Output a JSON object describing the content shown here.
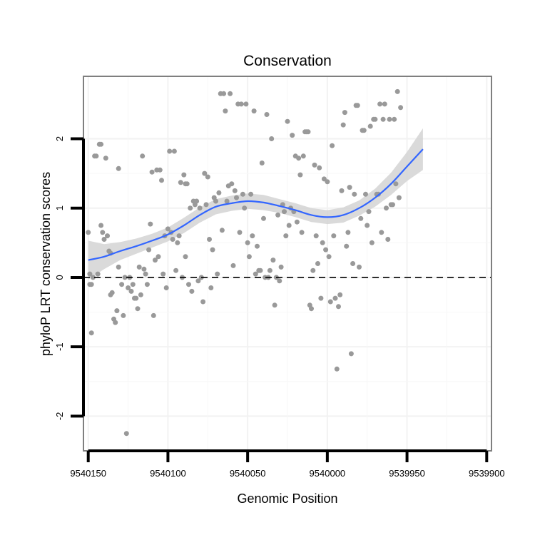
{
  "chart_data": {
    "type": "scatter",
    "title": "Conservation",
    "xlabel": "Genomic Position",
    "ylabel": "phyloP LRT conservation scores",
    "x_reversed": true,
    "xlim": [
      9540153,
      9539897
    ],
    "ylim": [
      -2.5,
      2.9
    ],
    "x_ticks": [
      9540150,
      9540100,
      9540050,
      9540000,
      9539950,
      9539900
    ],
    "x_tick_labels": [
      "9540150",
      "9540100",
      "9540050",
      "9540000",
      "9539950",
      "9539900"
    ],
    "y_ticks": [
      -2,
      -1,
      0,
      1,
      2
    ],
    "y_tick_labels": [
      "-2",
      "-1",
      "0",
      "1",
      "2"
    ],
    "grid": true,
    "reference_line": {
      "y": 0,
      "style": "dashed"
    },
    "colors": {
      "points": "#999999",
      "smooth": "#3366ff",
      "band": "#d3d3d3",
      "panel_border": "#7f7f7f",
      "grid": "#f2f2f2"
    },
    "points": [
      [
        9540150,
        0.65
      ],
      [
        9540149,
        0.05
      ],
      [
        9540149,
        -0.1
      ],
      [
        9540148,
        -0.8
      ],
      [
        9540148,
        -0.1
      ],
      [
        9540147,
        0.0
      ],
      [
        9540146,
        1.75
      ],
      [
        9540145,
        1.75
      ],
      [
        9540144,
        0.05
      ],
      [
        9540143,
        1.92
      ],
      [
        9540142,
        1.92
      ],
      [
        9540142,
        0.75
      ],
      [
        9540141,
        0.65
      ],
      [
        9540140,
        0.55
      ],
      [
        9540139,
        1.72
      ],
      [
        9540138,
        0.6
      ],
      [
        9540137,
        0.38
      ],
      [
        9540136,
        0.35
      ],
      [
        9540136,
        -0.25
      ],
      [
        9540135,
        -0.22
      ],
      [
        9540134,
        -0.6
      ],
      [
        9540133,
        -0.65
      ],
      [
        9540132,
        -0.48
      ],
      [
        9540131,
        1.57
      ],
      [
        9540131,
        0.15
      ],
      [
        9540129,
        -0.1
      ],
      [
        9540128,
        -0.55
      ],
      [
        9540127,
        0.0
      ],
      [
        9540126,
        -2.25
      ],
      [
        9540125,
        -0.15
      ],
      [
        9540124,
        0.0
      ],
      [
        9540123,
        -0.2
      ],
      [
        9540122,
        -0.1
      ],
      [
        9540121,
        -0.3
      ],
      [
        9540120,
        -0.3
      ],
      [
        9540119,
        -0.45
      ],
      [
        9540118,
        0.15
      ],
      [
        9540117,
        -0.25
      ],
      [
        9540116,
        1.75
      ],
      [
        9540115,
        0.12
      ],
      [
        9540114,
        0.05
      ],
      [
        9540113,
        -0.1
      ],
      [
        9540112,
        0.4
      ],
      [
        9540111,
        0.77
      ],
      [
        9540110,
        1.52
      ],
      [
        9540109,
        -0.55
      ],
      [
        9540108,
        0.25
      ],
      [
        9540107,
        1.55
      ],
      [
        9540106,
        0.3
      ],
      [
        9540105,
        1.55
      ],
      [
        9540104,
        1.4
      ],
      [
        9540103,
        0.05
      ],
      [
        9540102,
        0.6
      ],
      [
        9540101,
        -0.15
      ],
      [
        9540100,
        0.7
      ],
      [
        9540099,
        1.82
      ],
      [
        9540098,
        0.65
      ],
      [
        9540097,
        0.55
      ],
      [
        9540096,
        1.82
      ],
      [
        9540095,
        0.1
      ],
      [
        9540094,
        0.5
      ],
      [
        9540093,
        0.6
      ],
      [
        9540092,
        1.37
      ],
      [
        9540091,
        0.0
      ],
      [
        9540090,
        1.48
      ],
      [
        9540089,
        1.35
      ],
      [
        9540089,
        0.3
      ],
      [
        9540088,
        1.35
      ],
      [
        9540087,
        -0.1
      ],
      [
        9540086,
        1.0
      ],
      [
        9540085,
        -0.2
      ],
      [
        9540084,
        1.1
      ],
      [
        9540083,
        1.05
      ],
      [
        9540082,
        1.1
      ],
      [
        9540081,
        -0.05
      ],
      [
        9540080,
        1.0
      ],
      [
        9540079,
        0.0
      ],
      [
        9540078,
        -0.35
      ],
      [
        9540077,
        1.5
      ],
      [
        9540076,
        1.05
      ],
      [
        9540075,
        1.45
      ],
      [
        9540074,
        0.55
      ],
      [
        9540073,
        -0.15
      ],
      [
        9540072,
        0.4
      ],
      [
        9540071,
        1.15
      ],
      [
        9540070,
        1.1
      ],
      [
        9540069,
        0.05
      ],
      [
        9540068,
        1.22
      ],
      [
        9540067,
        2.65
      ],
      [
        9540066,
        0.68
      ],
      [
        9540065,
        2.65
      ],
      [
        9540064,
        2.4
      ],
      [
        9540063,
        1.1
      ],
      [
        9540062,
        1.32
      ],
      [
        9540061,
        2.65
      ],
      [
        9540060,
        1.35
      ],
      [
        9540059,
        0.17
      ],
      [
        9540058,
        1.25
      ],
      [
        9540057,
        1.15
      ],
      [
        9540056,
        2.5
      ],
      [
        9540055,
        0.65
      ],
      [
        9540054,
        2.5
      ],
      [
        9540053,
        1.2
      ],
      [
        9540052,
        1.0
      ],
      [
        9540051,
        2.5
      ],
      [
        9540050,
        0.5
      ],
      [
        9540049,
        0.3
      ],
      [
        9540048,
        1.2
      ],
      [
        9540047,
        0.6
      ],
      [
        9540046,
        2.4
      ],
      [
        9540045,
        0.05
      ],
      [
        9540044,
        0.45
      ],
      [
        9540043,
        0.1
      ],
      [
        9540042,
        0.1
      ],
      [
        9540041,
        1.65
      ],
      [
        9540040,
        0.85
      ],
      [
        9540039,
        0.0
      ],
      [
        9540038,
        2.35
      ],
      [
        9540037,
        0.0
      ],
      [
        9540036,
        0.1
      ],
      [
        9540035,
        2.0
      ],
      [
        9540034,
        0.25
      ],
      [
        9540033,
        -0.4
      ],
      [
        9540032,
        0.0
      ],
      [
        9540031,
        0.9
      ],
      [
        9540030,
        -0.05
      ],
      [
        9540029,
        0.15
      ],
      [
        9540028,
        1.05
      ],
      [
        9540027,
        0.95
      ],
      [
        9540026,
        0.6
      ],
      [
        9540025,
        2.25
      ],
      [
        9540024,
        0.75
      ],
      [
        9540023,
        1.0
      ],
      [
        9540022,
        2.05
      ],
      [
        9540021,
        0.95
      ],
      [
        9540020,
        1.75
      ],
      [
        9540019,
        0.8
      ],
      [
        9540018,
        1.72
      ],
      [
        9540017,
        1.48
      ],
      [
        9540016,
        0.65
      ],
      [
        9540015,
        1.75
      ],
      [
        9540014,
        2.1
      ],
      [
        9540013,
        2.1
      ],
      [
        9540012,
        2.1
      ],
      [
        9540011,
        -0.4
      ],
      [
        9540010,
        -0.45
      ],
      [
        9540009,
        0.1
      ],
      [
        9540008,
        1.62
      ],
      [
        9540007,
        0.6
      ],
      [
        9540006,
        0.2
      ],
      [
        9540005,
        1.58
      ],
      [
        9540004,
        -0.3
      ],
      [
        9540003,
        0.5
      ],
      [
        9540002,
        1.42
      ],
      [
        9540001,
        0.4
      ],
      [
        9540000,
        1.38
      ],
      [
        9539999,
        0.3
      ],
      [
        9539998,
        -0.35
      ],
      [
        9539997,
        1.9
      ],
      [
        9539996,
        0.6
      ],
      [
        9539995,
        -0.3
      ],
      [
        9539994,
        -1.32
      ],
      [
        9539993,
        -0.42
      ],
      [
        9539992,
        -0.25
      ],
      [
        9539991,
        1.25
      ],
      [
        9539990,
        2.2
      ],
      [
        9539989,
        2.38
      ],
      [
        9539988,
        0.45
      ],
      [
        9539987,
        0.65
      ],
      [
        9539986,
        1.3
      ],
      [
        9539985,
        -1.1
      ],
      [
        9539984,
        0.2
      ],
      [
        9539983,
        1.2
      ],
      [
        9539982,
        2.48
      ],
      [
        9539981,
        2.48
      ],
      [
        9539980,
        0.15
      ],
      [
        9539979,
        0.85
      ],
      [
        9539978,
        2.12
      ],
      [
        9539977,
        2.12
      ],
      [
        9539976,
        1.2
      ],
      [
        9539975,
        0.75
      ],
      [
        9539974,
        0.95
      ],
      [
        9539973,
        2.18
      ],
      [
        9539972,
        0.5
      ],
      [
        9539971,
        2.28
      ],
      [
        9539970,
        2.28
      ],
      [
        9539969,
        1.2
      ],
      [
        9539968,
        1.2
      ],
      [
        9539967,
        2.5
      ],
      [
        9539966,
        0.65
      ],
      [
        9539965,
        2.28
      ],
      [
        9539964,
        2.5
      ],
      [
        9539963,
        1.0
      ],
      [
        9539962,
        0.55
      ],
      [
        9539961,
        2.28
      ],
      [
        9539960,
        1.05
      ],
      [
        9539959,
        1.05
      ],
      [
        9539958,
        2.28
      ],
      [
        9539957,
        1.35
      ],
      [
        9539956,
        2.68
      ],
      [
        9539955,
        1.15
      ],
      [
        9539954,
        2.45
      ]
    ],
    "smooth": [
      [
        9540150,
        0.25
      ],
      [
        9540140,
        0.3
      ],
      [
        9540130,
        0.38
      ],
      [
        9540120,
        0.45
      ],
      [
        9540110,
        0.53
      ],
      [
        9540100,
        0.62
      ],
      [
        9540090,
        0.75
      ],
      [
        9540080,
        0.9
      ],
      [
        9540070,
        1.02
      ],
      [
        9540060,
        1.07
      ],
      [
        9540050,
        1.1
      ],
      [
        9540040,
        1.08
      ],
      [
        9540030,
        1.03
      ],
      [
        9540020,
        0.97
      ],
      [
        9540010,
        0.9
      ],
      [
        9540000,
        0.87
      ],
      [
        9539990,
        0.9
      ],
      [
        9539980,
        1.0
      ],
      [
        9539970,
        1.15
      ],
      [
        9539960,
        1.35
      ],
      [
        9539950,
        1.6
      ],
      [
        9539940,
        1.85
      ]
    ],
    "band_halfwidth": [
      0.28,
      0.18,
      0.13,
      0.11,
      0.1,
      0.1,
      0.11,
      0.11,
      0.11,
      0.11,
      0.11,
      0.11,
      0.1,
      0.1,
      0.1,
      0.1,
      0.11,
      0.11,
      0.13,
      0.16,
      0.21,
      0.3
    ]
  }
}
